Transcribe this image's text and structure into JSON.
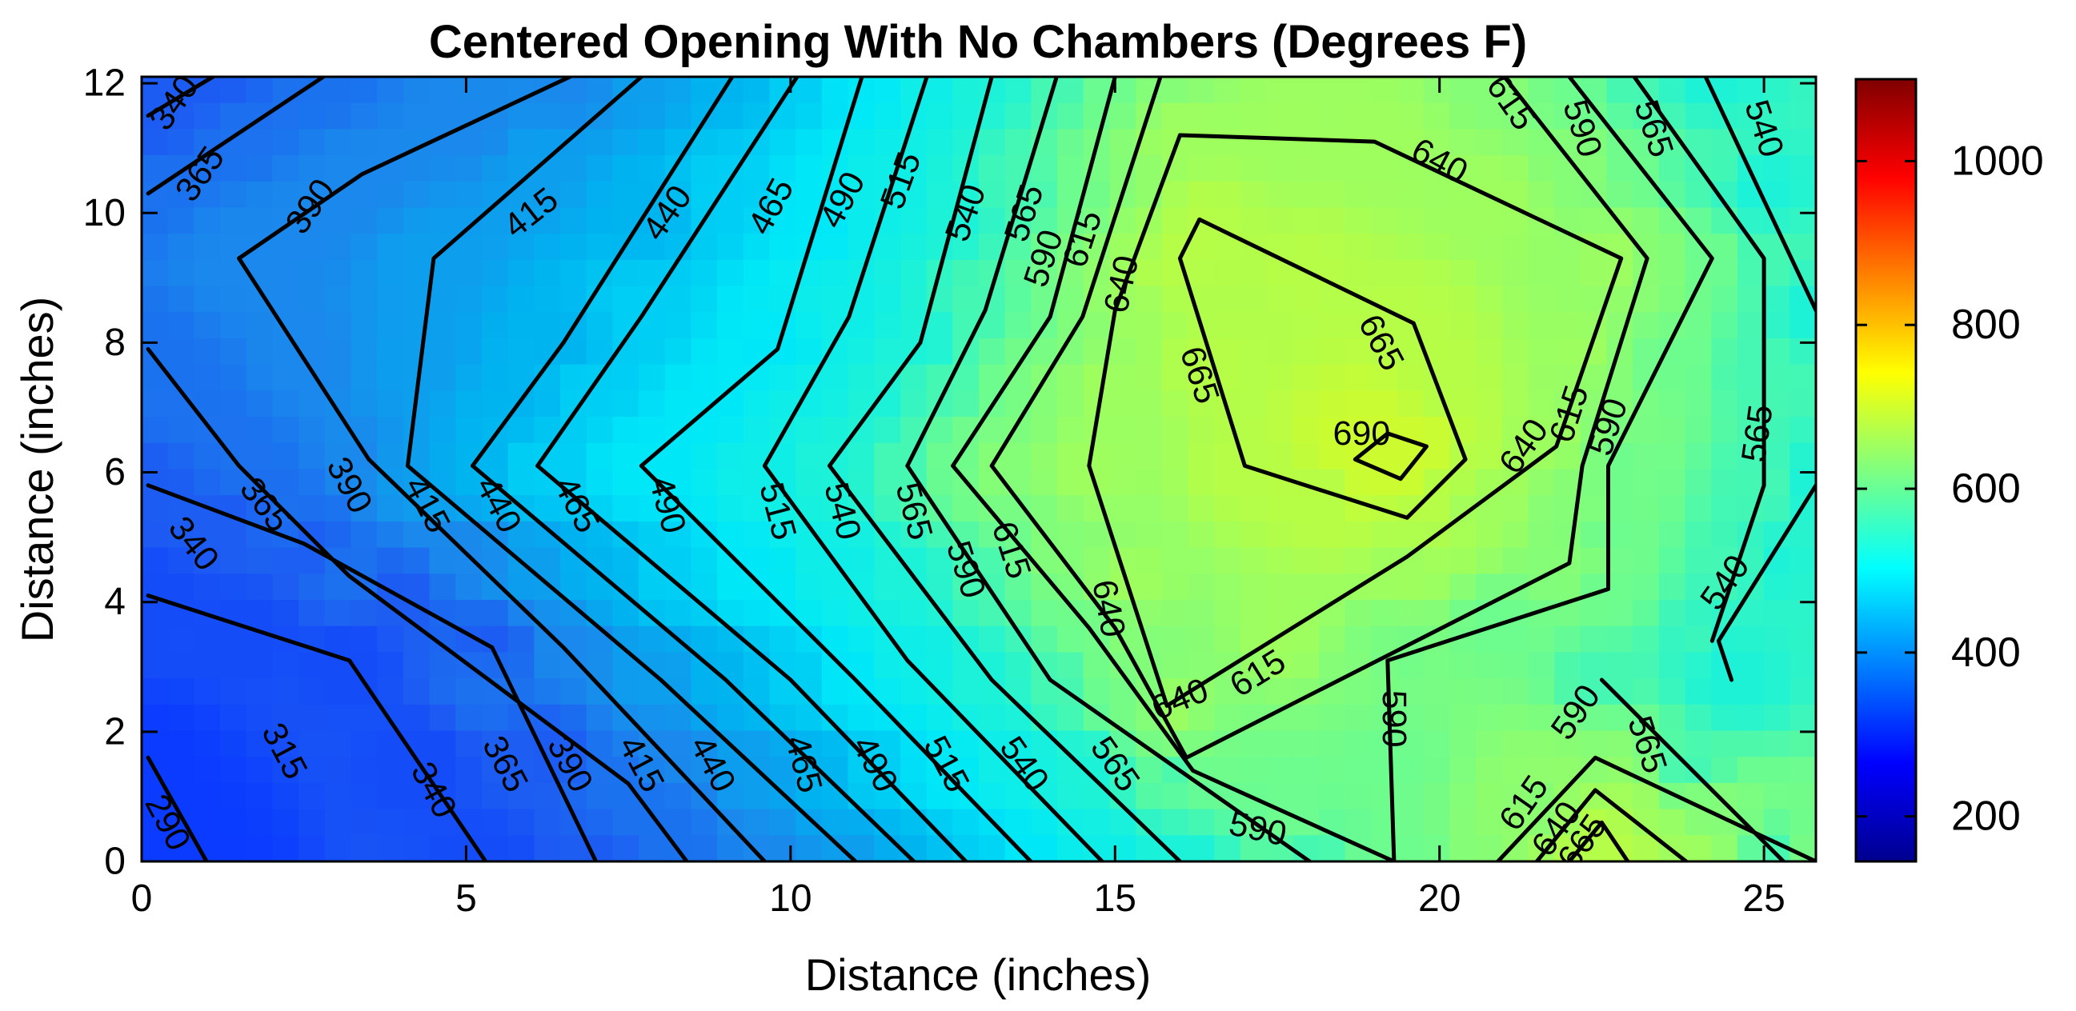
{
  "chart_data": {
    "type": "contour",
    "title": "Centered Opening With No Chambers (Degrees F)",
    "xlabel": "Distance (inches)",
    "ylabel": "Distance (inches)",
    "xlim": [
      0,
      25.8
    ],
    "ylim": [
      0,
      12.1
    ],
    "xticks": [
      "0",
      "5",
      "10",
      "15",
      "20",
      "25"
    ],
    "yticks": [
      "0",
      "2",
      "4",
      "6",
      "8",
      "10",
      "12"
    ],
    "colormap": "jet",
    "colorbar": {
      "range": [
        145,
        1100
      ],
      "ticks": [
        "200",
        "400",
        "600",
        "800",
        "1000"
      ]
    },
    "fill_color_stops": [
      {
        "value": 290,
        "color": "#0a3bff"
      },
      {
        "value": 340,
        "color": "#1d5cf2"
      },
      {
        "value": 390,
        "color": "#1a88ec"
      },
      {
        "value": 440,
        "color": "#00b4f0"
      },
      {
        "value": 490,
        "color": "#00e8f8"
      },
      {
        "value": 540,
        "color": "#1cf2d8"
      },
      {
        "value": 590,
        "color": "#6dfc8e"
      },
      {
        "value": 640,
        "color": "#9efe5e"
      },
      {
        "value": 690,
        "color": "#ccfc30"
      }
    ],
    "contour_levels": [
      290,
      315,
      340,
      365,
      390,
      415,
      440,
      465,
      490,
      515,
      540,
      565,
      590,
      615,
      640,
      665,
      690
    ],
    "contours": [
      {
        "level": 290,
        "points": [
          [
            0.1,
            1.6
          ],
          [
            1.0,
            0.0
          ]
        ]
      },
      {
        "level": 315,
        "points": [
          [
            0.1,
            4.1
          ],
          [
            3.2,
            3.1
          ],
          [
            5.3,
            0.0
          ]
        ]
      },
      {
        "level": 340,
        "points": [
          [
            0.1,
            5.8
          ],
          [
            2.5,
            4.9
          ],
          [
            5.4,
            3.3
          ],
          [
            7.0,
            0.0
          ]
        ]
      },
      {
        "level": 340,
        "points": [
          [
            0.1,
            11.5
          ],
          [
            1.1,
            12.1
          ]
        ]
      },
      {
        "level": 365,
        "points": [
          [
            0.1,
            7.9
          ],
          [
            1.5,
            6.1
          ],
          [
            3.2,
            4.4
          ],
          [
            7.5,
            1.2
          ],
          [
            8.4,
            0.0
          ]
        ]
      },
      {
        "level": 365,
        "points": [
          [
            0.1,
            10.3
          ],
          [
            2.8,
            12.1
          ]
        ]
      },
      {
        "level": 390,
        "points": [
          [
            1.5,
            9.3
          ],
          [
            3.5,
            6.2
          ],
          [
            6.5,
            3.3
          ],
          [
            9.6,
            0.0
          ]
        ]
      },
      {
        "level": 390,
        "points": [
          [
            1.5,
            9.3
          ],
          [
            3.4,
            10.6
          ],
          [
            6.6,
            12.1
          ]
        ]
      },
      {
        "level": 415,
        "points": [
          [
            4.1,
            6.1
          ],
          [
            4.5,
            9.3
          ],
          [
            7.7,
            12.1
          ]
        ]
      },
      {
        "level": 415,
        "points": [
          [
            4.1,
            6.1
          ],
          [
            8.0,
            2.8
          ],
          [
            11.0,
            0.0
          ]
        ]
      },
      {
        "level": 440,
        "points": [
          [
            5.1,
            6.1
          ],
          [
            6.5,
            8.0
          ],
          [
            9.1,
            12.1
          ]
        ]
      },
      {
        "level": 440,
        "points": [
          [
            5.1,
            6.1
          ],
          [
            9.0,
            2.8
          ],
          [
            11.9,
            0.0
          ]
        ]
      },
      {
        "level": 465,
        "points": [
          [
            6.1,
            6.1
          ],
          [
            7.7,
            8.4
          ],
          [
            10.1,
            12.1
          ]
        ]
      },
      {
        "level": 465,
        "points": [
          [
            6.1,
            6.1
          ],
          [
            10.0,
            2.8
          ],
          [
            12.7,
            0.0
          ]
        ]
      },
      {
        "level": 490,
        "points": [
          [
            7.7,
            6.1
          ],
          [
            9.8,
            7.9
          ],
          [
            11.1,
            12.1
          ]
        ]
      },
      {
        "level": 490,
        "points": [
          [
            7.7,
            6.1
          ],
          [
            11.0,
            2.8
          ],
          [
            13.7,
            0.0
          ]
        ]
      },
      {
        "level": 515,
        "points": [
          [
            9.6,
            6.1
          ],
          [
            10.9,
            8.4
          ],
          [
            12.1,
            12.1
          ]
        ]
      },
      {
        "level": 515,
        "points": [
          [
            9.6,
            6.1
          ],
          [
            11.8,
            3.1
          ],
          [
            14.8,
            0.0
          ]
        ]
      },
      {
        "level": 540,
        "points": [
          [
            10.6,
            6.1
          ],
          [
            12.0,
            8.0
          ],
          [
            13.1,
            12.1
          ]
        ]
      },
      {
        "level": 540,
        "points": [
          [
            10.6,
            6.1
          ],
          [
            13.1,
            2.8
          ],
          [
            16.0,
            0.0
          ]
        ]
      },
      {
        "level": 540,
        "points": [
          [
            24.1,
            12.1
          ],
          [
            25.8,
            8.5
          ]
        ]
      },
      {
        "level": 540,
        "points": [
          [
            25.8,
            5.8
          ],
          [
            24.3,
            3.4
          ],
          [
            24.5,
            2.8
          ]
        ]
      },
      {
        "level": 565,
        "points": [
          [
            11.8,
            6.1
          ],
          [
            13.0,
            8.5
          ],
          [
            14.1,
            12.1
          ]
        ]
      },
      {
        "level": 565,
        "points": [
          [
            11.8,
            6.1
          ],
          [
            14.0,
            2.8
          ],
          [
            18.0,
            0.0
          ]
        ]
      },
      {
        "level": 565,
        "points": [
          [
            23.0,
            12.1
          ],
          [
            25.0,
            9.3
          ],
          [
            25.0,
            5.8
          ],
          [
            24.2,
            3.4
          ]
        ]
      },
      {
        "level": 565,
        "points": [
          [
            25.3,
            0.0
          ],
          [
            22.5,
            2.8
          ]
        ]
      },
      {
        "level": 590,
        "points": [
          [
            12.5,
            6.1
          ],
          [
            14.0,
            8.4
          ],
          [
            15.0,
            12.1
          ]
        ]
      },
      {
        "level": 590,
        "points": [
          [
            12.5,
            6.1
          ],
          [
            14.6,
            3.6
          ],
          [
            16.2,
            1.4
          ],
          [
            19.3,
            0.0
          ]
        ]
      },
      {
        "level": 590,
        "points": [
          [
            19.3,
            0.0
          ],
          [
            19.2,
            3.1
          ],
          [
            22.6,
            4.2
          ],
          [
            22.6,
            6.1
          ],
          [
            24.2,
            9.3
          ],
          [
            22.0,
            12.1
          ]
        ]
      },
      {
        "level": 615,
        "points": [
          [
            13.1,
            6.1
          ],
          [
            14.5,
            8.4
          ],
          [
            15.7,
            12.1
          ]
        ]
      },
      {
        "level": 615,
        "points": [
          [
            13.1,
            6.1
          ],
          [
            15.0,
            3.6
          ],
          [
            16.1,
            1.6
          ],
          [
            22.0,
            4.6
          ],
          [
            22.2,
            6.1
          ],
          [
            23.2,
            9.3
          ],
          [
            21.0,
            12.1
          ]
        ]
      },
      {
        "level": 640,
        "points": [
          [
            14.6,
            6.1
          ],
          [
            15.0,
            8.5
          ],
          [
            16.0,
            11.2
          ],
          [
            19.0,
            11.1
          ],
          [
            22.8,
            9.3
          ],
          [
            21.8,
            6.4
          ],
          [
            19.5,
            4.7
          ],
          [
            15.8,
            2.4
          ],
          [
            14.6,
            6.1
          ]
        ]
      },
      {
        "level": 665,
        "points": [
          [
            16.0,
            9.3
          ],
          [
            17.0,
            6.1
          ],
          [
            19.5,
            5.3
          ],
          [
            20.4,
            6.2
          ],
          [
            19.6,
            8.3
          ],
          [
            16.3,
            9.9
          ],
          [
            16.0,
            9.3
          ]
        ]
      },
      {
        "level": 690,
        "points": [
          [
            18.7,
            6.2
          ],
          [
            19.4,
            5.9
          ],
          [
            19.8,
            6.4
          ],
          [
            19.2,
            6.6
          ],
          [
            18.7,
            6.2
          ]
        ]
      },
      {
        "level": 615,
        "points": [
          [
            20.9,
            0.0
          ],
          [
            22.4,
            1.6
          ],
          [
            25.8,
            0.0
          ]
        ]
      },
      {
        "level": 640,
        "points": [
          [
            21.5,
            0.0
          ],
          [
            22.4,
            1.1
          ],
          [
            23.8,
            0.0
          ]
        ]
      },
      {
        "level": 665,
        "points": [
          [
            22.0,
            0.0
          ],
          [
            22.5,
            0.6
          ],
          [
            22.9,
            0.0
          ]
        ]
      }
    ],
    "contour_labels": [
      {
        "text": "290",
        "x": 0.4,
        "y": 0.6,
        "angle": 62
      },
      {
        "text": "315",
        "x": 2.2,
        "y": 1.7,
        "angle": 62
      },
      {
        "text": "340",
        "x": 4.5,
        "y": 1.1,
        "angle": 62
      },
      {
        "text": "340",
        "x": 0.8,
        "y": 4.9,
        "angle": 52
      },
      {
        "text": "340",
        "x": 0.5,
        "y": 11.7,
        "angle": -55
      },
      {
        "text": "365",
        "x": 1.9,
        "y": 5.5,
        "angle": 52
      },
      {
        "text": "365",
        "x": 0.9,
        "y": 10.6,
        "angle": -55
      },
      {
        "text": "365",
        "x": 5.6,
        "y": 1.5,
        "angle": 62
      },
      {
        "text": "390",
        "x": 6.6,
        "y": 1.5,
        "angle": 62
      },
      {
        "text": "390",
        "x": 3.2,
        "y": 5.8,
        "angle": 62
      },
      {
        "text": "390",
        "x": 2.6,
        "y": 10.1,
        "angle": -55
      },
      {
        "text": "415",
        "x": 7.7,
        "y": 1.5,
        "angle": 62
      },
      {
        "text": "415",
        "x": 4.4,
        "y": 5.5,
        "angle": 62
      },
      {
        "text": "415",
        "x": 6.0,
        "y": 10.0,
        "angle": -38
      },
      {
        "text": "440",
        "x": 8.8,
        "y": 1.5,
        "angle": 62
      },
      {
        "text": "440",
        "x": 5.5,
        "y": 5.5,
        "angle": 62
      },
      {
        "text": "440",
        "x": 8.1,
        "y": 10.0,
        "angle": -55
      },
      {
        "text": "465",
        "x": 10.2,
        "y": 1.5,
        "angle": 75
      },
      {
        "text": "465",
        "x": 6.7,
        "y": 5.5,
        "angle": 62
      },
      {
        "text": "465",
        "x": 9.7,
        "y": 10.1,
        "angle": -62
      },
      {
        "text": "490",
        "x": 11.3,
        "y": 1.5,
        "angle": 62
      },
      {
        "text": "490",
        "x": 8.1,
        "y": 5.5,
        "angle": 75
      },
      {
        "text": "490",
        "x": 10.8,
        "y": 10.2,
        "angle": -62
      },
      {
        "text": "515",
        "x": 12.4,
        "y": 1.5,
        "angle": 62
      },
      {
        "text": "515",
        "x": 9.8,
        "y": 5.4,
        "angle": 75
      },
      {
        "text": "515",
        "x": 11.7,
        "y": 10.5,
        "angle": -70
      },
      {
        "text": "540",
        "x": 13.6,
        "y": 1.5,
        "angle": 55
      },
      {
        "text": "540",
        "x": 10.8,
        "y": 5.4,
        "angle": 75
      },
      {
        "text": "540",
        "x": 12.7,
        "y": 10.0,
        "angle": -70
      },
      {
        "text": "540",
        "x": 25.0,
        "y": 11.3,
        "angle": 72
      },
      {
        "text": "540",
        "x": 24.4,
        "y": 4.3,
        "angle": -55
      },
      {
        "text": "565",
        "x": 15.0,
        "y": 1.5,
        "angle": 55
      },
      {
        "text": "565",
        "x": 11.9,
        "y": 5.4,
        "angle": 75
      },
      {
        "text": "565",
        "x": 13.6,
        "y": 10.0,
        "angle": -72
      },
      {
        "text": "565",
        "x": 23.3,
        "y": 11.3,
        "angle": 72
      },
      {
        "text": "565",
        "x": 24.9,
        "y": 6.6,
        "angle": -82
      },
      {
        "text": "565",
        "x": 23.2,
        "y": 1.8,
        "angle": 72
      },
      {
        "text": "590",
        "x": 17.2,
        "y": 0.5,
        "angle": 12
      },
      {
        "text": "590",
        "x": 12.7,
        "y": 4.5,
        "angle": 72
      },
      {
        "text": "590",
        "x": 13.9,
        "y": 9.3,
        "angle": -72
      },
      {
        "text": "590",
        "x": 19.3,
        "y": 2.2,
        "angle": 90
      },
      {
        "text": "590",
        "x": 22.6,
        "y": 6.7,
        "angle": -72
      },
      {
        "text": "590",
        "x": 22.2,
        "y": 11.3,
        "angle": 72
      },
      {
        "text": "590",
        "x": 22.1,
        "y": 2.3,
        "angle": -55
      },
      {
        "text": "615",
        "x": 13.4,
        "y": 4.8,
        "angle": 72
      },
      {
        "text": "615",
        "x": 14.5,
        "y": 9.6,
        "angle": -72
      },
      {
        "text": "615",
        "x": 17.2,
        "y": 2.9,
        "angle": -32
      },
      {
        "text": "615",
        "x": 22.0,
        "y": 6.9,
        "angle": -72
      },
      {
        "text": "615",
        "x": 21.1,
        "y": 11.7,
        "angle": 55
      },
      {
        "text": "615",
        "x": 21.3,
        "y": 0.9,
        "angle": -55
      },
      {
        "text": "640",
        "x": 14.9,
        "y": 3.9,
        "angle": 80
      },
      {
        "text": "640",
        "x": 15.1,
        "y": 8.9,
        "angle": -78
      },
      {
        "text": "640",
        "x": 16.0,
        "y": 2.5,
        "angle": -22
      },
      {
        "text": "640",
        "x": 21.3,
        "y": 6.4,
        "angle": -55
      },
      {
        "text": "640",
        "x": 20.0,
        "y": 10.8,
        "angle": 28
      },
      {
        "text": "640",
        "x": 21.8,
        "y": 0.5,
        "angle": -55
      },
      {
        "text": "665",
        "x": 16.3,
        "y": 7.5,
        "angle": 72
      },
      {
        "text": "665",
        "x": 19.1,
        "y": 8.0,
        "angle": 62
      },
      {
        "text": "665",
        "x": 22.2,
        "y": 0.3,
        "angle": -55
      },
      {
        "text": "690",
        "x": 18.8,
        "y": 6.6,
        "angle": 0
      }
    ]
  }
}
